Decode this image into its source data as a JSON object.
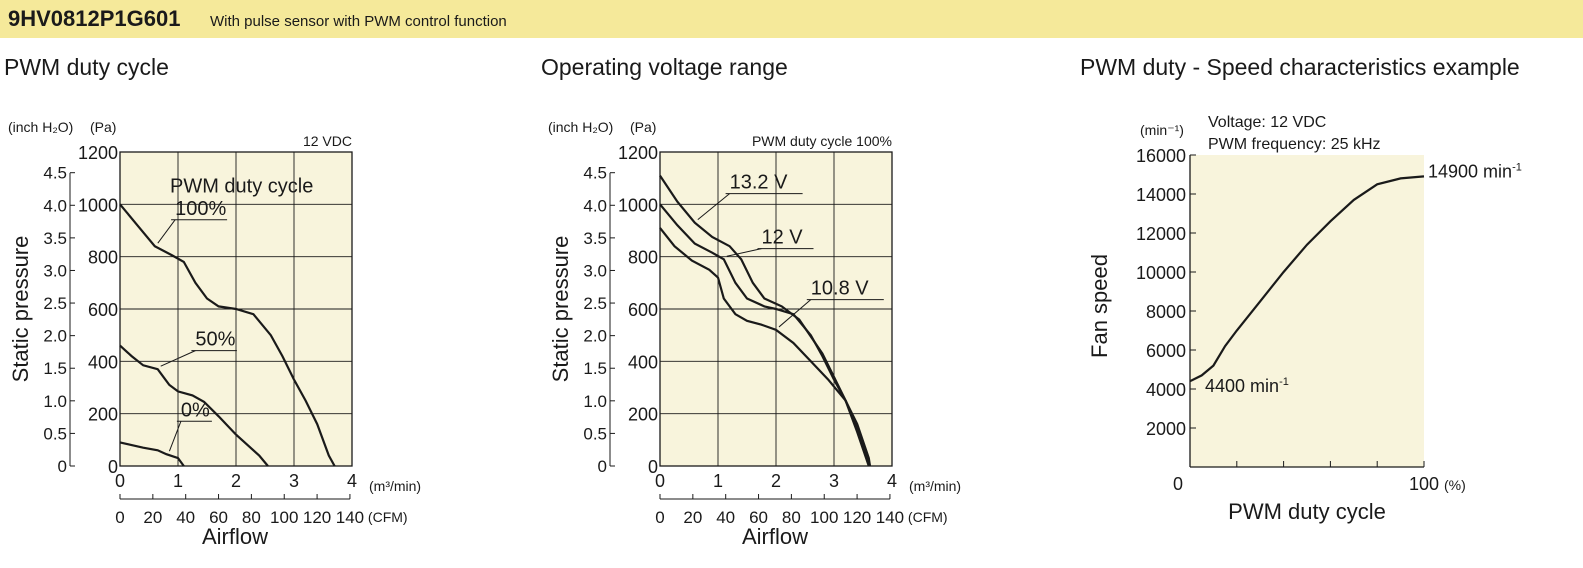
{
  "header": {
    "model": "9HV0812P1G601",
    "description": "With pulse sensor with PWM control function",
    "background": "#f5e99a"
  },
  "plot_bg": "#f8f4dc",
  "chart_data": [
    {
      "id": "pwm",
      "type": "line",
      "title": "PWM duty cycle",
      "ylabel": "Static pressure",
      "xlabel": "Airflow",
      "y_unit_left": "(inch H₂O)",
      "y_unit_right": "(Pa)",
      "x_unit_top": "(m³/min)",
      "x_unit_bottom": "(CFM)",
      "note": "12 VDC",
      "legend_title": "PWM duty cycle",
      "xlim": [
        0,
        4
      ],
      "ylim": [
        0,
        1200
      ],
      "x_ticks": [
        "0",
        "1",
        "2",
        "3",
        "4"
      ],
      "y_ticks": [
        "0",
        "200",
        "400",
        "600",
        "800",
        "1000",
        "1200"
      ],
      "inch_ticks": [
        "0",
        "0.5",
        "1.0",
        "1.5",
        "2.0",
        "2.5",
        "3.0",
        "3.5",
        "4.0",
        "4.5"
      ],
      "cfm_ticks": [
        "0",
        "20",
        "40",
        "60",
        "80",
        "100",
        "120",
        "140"
      ],
      "series": [
        {
          "name": "100%",
          "label_x": 0.95,
          "label_y": 960,
          "points": [
            [
              0,
              1000
            ],
            [
              0.3,
              920
            ],
            [
              0.6,
              840
            ],
            [
              0.9,
              805
            ],
            [
              1.1,
              780
            ],
            [
              1.3,
              700
            ],
            [
              1.5,
              640
            ],
            [
              1.7,
              610
            ],
            [
              2.0,
              600
            ],
            [
              2.3,
              580
            ],
            [
              2.6,
              500
            ],
            [
              2.8,
              420
            ],
            [
              3.0,
              330
            ],
            [
              3.2,
              250
            ],
            [
              3.4,
              160
            ],
            [
              3.6,
              40
            ],
            [
              3.7,
              0
            ]
          ]
        },
        {
          "name": "50%",
          "label_x": 1.3,
          "label_y": 460,
          "points": [
            [
              0,
              460
            ],
            [
              0.2,
              420
            ],
            [
              0.4,
              385
            ],
            [
              0.65,
              370
            ],
            [
              0.85,
              310
            ],
            [
              1.0,
              285
            ],
            [
              1.25,
              270
            ],
            [
              1.45,
              245
            ],
            [
              1.7,
              190
            ],
            [
              2.0,
              120
            ],
            [
              2.2,
              80
            ],
            [
              2.4,
              40
            ],
            [
              2.55,
              0
            ]
          ]
        },
        {
          "name": "0%",
          "label_x": 1.05,
          "label_y": 190,
          "points": [
            [
              0,
              90
            ],
            [
              0.2,
              80
            ],
            [
              0.4,
              70
            ],
            [
              0.65,
              60
            ],
            [
              0.8,
              45
            ],
            [
              1.0,
              30
            ],
            [
              1.1,
              0
            ]
          ]
        }
      ]
    },
    {
      "id": "volt",
      "type": "line",
      "title": "Operating voltage range",
      "ylabel": "Static pressure",
      "xlabel": "Airflow",
      "y_unit_left": "(inch H₂O)",
      "y_unit_right": "(Pa)",
      "x_unit_top": "(m³/min)",
      "x_unit_bottom": "(CFM)",
      "note": "PWM duty cycle 100%",
      "xlim": [
        0,
        4
      ],
      "ylim": [
        0,
        1200
      ],
      "x_ticks": [
        "0",
        "1",
        "2",
        "3",
        "4"
      ],
      "y_ticks": [
        "0",
        "200",
        "400",
        "600",
        "800",
        "1000",
        "1200"
      ],
      "inch_ticks": [
        "0",
        "0.5",
        "1.0",
        "1.5",
        "2.0",
        "2.5",
        "3.0",
        "3.5",
        "4.0",
        "4.5"
      ],
      "cfm_ticks": [
        "0",
        "20",
        "40",
        "60",
        "80",
        "100",
        "120",
        "140"
      ],
      "series": [
        {
          "name": "13.2 V",
          "label_x": 1.2,
          "label_y": 1060,
          "points": [
            [
              0,
              1110
            ],
            [
              0.3,
              1010
            ],
            [
              0.6,
              930
            ],
            [
              0.9,
              875
            ],
            [
              1.2,
              840
            ],
            [
              1.4,
              790
            ],
            [
              1.6,
              700
            ],
            [
              1.8,
              640
            ],
            [
              2.1,
              610
            ],
            [
              2.4,
              560
            ],
            [
              2.8,
              430
            ],
            [
              3.0,
              340
            ],
            [
              3.2,
              250
            ],
            [
              3.4,
              130
            ],
            [
              3.6,
              0
            ]
          ]
        },
        {
          "name": "12 V",
          "label_x": 1.75,
          "label_y": 850,
          "points": [
            [
              0,
              1000
            ],
            [
              0.3,
              920
            ],
            [
              0.6,
              850
            ],
            [
              0.9,
              815
            ],
            [
              1.1,
              790
            ],
            [
              1.3,
              700
            ],
            [
              1.5,
              640
            ],
            [
              1.8,
              610
            ],
            [
              2.0,
              600
            ],
            [
              2.3,
              580
            ],
            [
              2.6,
              500
            ],
            [
              2.8,
              420
            ],
            [
              3.0,
              330
            ],
            [
              3.2,
              250
            ],
            [
              3.4,
              160
            ],
            [
              3.6,
              30
            ],
            [
              3.62,
              0
            ]
          ]
        },
        {
          "name": "10.8 V",
          "label_x": 2.6,
          "label_y": 655,
          "points": [
            [
              0,
              910
            ],
            [
              0.25,
              840
            ],
            [
              0.55,
              785
            ],
            [
              0.85,
              750
            ],
            [
              1.0,
              720
            ],
            [
              1.1,
              640
            ],
            [
              1.3,
              580
            ],
            [
              1.5,
              555
            ],
            [
              1.75,
              540
            ],
            [
              2.0,
              520
            ],
            [
              2.3,
              470
            ],
            [
              2.6,
              400
            ],
            [
              2.9,
              330
            ],
            [
              3.2,
              250
            ],
            [
              3.4,
              150
            ],
            [
              3.6,
              10
            ],
            [
              3.62,
              0
            ]
          ]
        }
      ]
    },
    {
      "id": "speed",
      "type": "line",
      "title": "PWM duty - Speed characteristics example",
      "ylabel": "Fan speed",
      "xlabel": "PWM duty cycle",
      "y_unit": "(min⁻¹)",
      "x_unit": "(%)",
      "voltage_note": "Voltage: 12 VDC",
      "frequency_note": "PWM frequency: 25 kHz",
      "xlim": [
        0,
        100
      ],
      "ylim": [
        0,
        16000
      ],
      "x_ticks": [
        "0",
        "100"
      ],
      "y_ticks": [
        "2000",
        "4000",
        "6000",
        "8000",
        "10000",
        "12000",
        "14000",
        "16000"
      ],
      "annotations": [
        {
          "value": "4400",
          "unit": "min",
          "sup": "-1"
        },
        {
          "value": "14900",
          "unit": "min",
          "sup": "-1"
        }
      ],
      "series": [
        {
          "points": [
            [
              0,
              4400
            ],
            [
              5,
              4700
            ],
            [
              10,
              5200
            ],
            [
              15,
              6200
            ],
            [
              20,
              7000
            ],
            [
              30,
              8500
            ],
            [
              40,
              10000
            ],
            [
              50,
              11400
            ],
            [
              60,
              12600
            ],
            [
              70,
              13700
            ],
            [
              80,
              14500
            ],
            [
              90,
              14800
            ],
            [
              100,
              14900
            ]
          ]
        }
      ]
    }
  ]
}
